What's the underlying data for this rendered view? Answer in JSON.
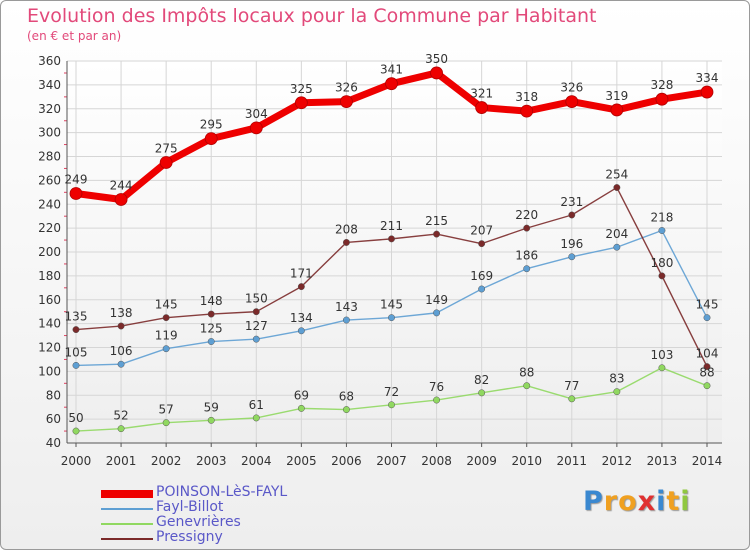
{
  "title": "Evolution des Impôts locaux pour la Commune par Habitant",
  "subtitle": "(en € et par an)",
  "logo": {
    "p": "P",
    "r": "r",
    "o": "o",
    "x": "x",
    "i1": "i",
    "t": "t",
    "i2": "i"
  },
  "chart_data": {
    "type": "line",
    "title": "Evolution des Impôts locaux pour la Commune par Habitant",
    "subtitle": "(en € et par an)",
    "x": [
      2000,
      2001,
      2002,
      2003,
      2004,
      2005,
      2006,
      2007,
      2008,
      2009,
      2010,
      2011,
      2012,
      2013,
      2014
    ],
    "ylim": [
      40,
      360
    ],
    "yticks": [
      40,
      60,
      80,
      100,
      120,
      140,
      160,
      180,
      200,
      220,
      240,
      260,
      280,
      300,
      320,
      340,
      360
    ],
    "grid": true,
    "legend_position": "bottom-left",
    "series": [
      {
        "name": "POINSON-LèS-FAYL",
        "color": "#ee0000",
        "values": [
          249,
          244,
          275,
          295,
          304,
          325,
          326,
          341,
          350,
          321,
          318,
          326,
          319,
          328,
          334
        ]
      },
      {
        "name": "Fayl-Billot",
        "color": "#5e9fd3",
        "values": [
          105,
          106,
          119,
          125,
          127,
          134,
          143,
          145,
          149,
          169,
          186,
          196,
          204,
          218,
          145
        ]
      },
      {
        "name": "Genevrières",
        "color": "#90d860",
        "values": [
          50,
          52,
          57,
          59,
          61,
          69,
          68,
          72,
          76,
          82,
          88,
          77,
          83,
          103,
          88
        ]
      },
      {
        "name": "Pressigny",
        "color": "#7b2a2a",
        "values": [
          135,
          138,
          145,
          148,
          150,
          171,
          208,
          211,
          215,
          207,
          220,
          231,
          254,
          180,
          104
        ]
      }
    ]
  }
}
